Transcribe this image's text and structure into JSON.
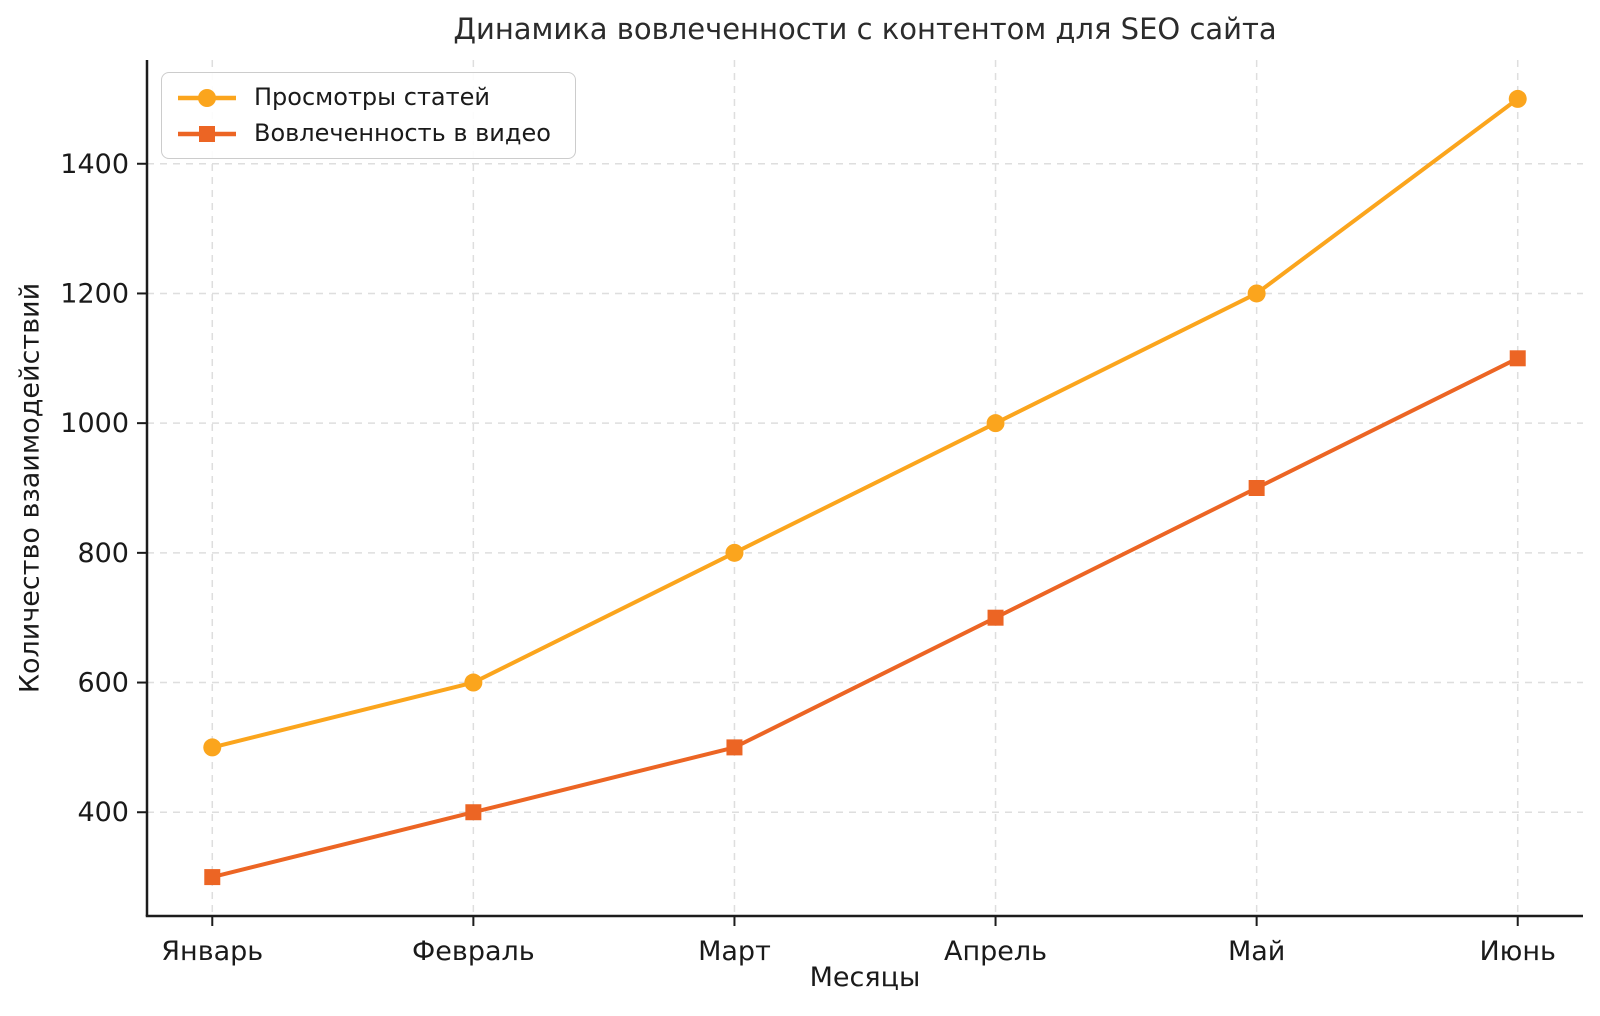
{
  "chart_data": {
    "type": "line",
    "title": "Динамика вовлеченности с контентом для SEO сайта",
    "xlabel": "Месяцы",
    "ylabel": "Количество взаимодействий",
    "categories": [
      "Январь",
      "Февраль",
      "Март",
      "Апрель",
      "Май",
      "Июнь"
    ],
    "series": [
      {
        "name": "Просмотры статей",
        "values": [
          500,
          600,
          800,
          1000,
          1200,
          1500
        ],
        "color": "#FBA51D",
        "marker": "circle"
      },
      {
        "name": "Вовлеченность в видео",
        "values": [
          300,
          400,
          500,
          700,
          900,
          1100
        ],
        "color": "#EC6524",
        "marker": "square"
      }
    ],
    "yticks": [
      400,
      600,
      800,
      1000,
      1200,
      1400
    ],
    "ylim": [
      240,
      1560
    ],
    "grid": true,
    "grid_style": "dashed",
    "legend_position": "upper-left",
    "styles": {
      "grid_color": "#dedede",
      "axis_color": "#1c1c1c",
      "tick_text_color": "#1a1a1a",
      "title_color": "#2b2b2b",
      "legend_border_color": "#cccccc",
      "background": "#ffffff"
    }
  }
}
